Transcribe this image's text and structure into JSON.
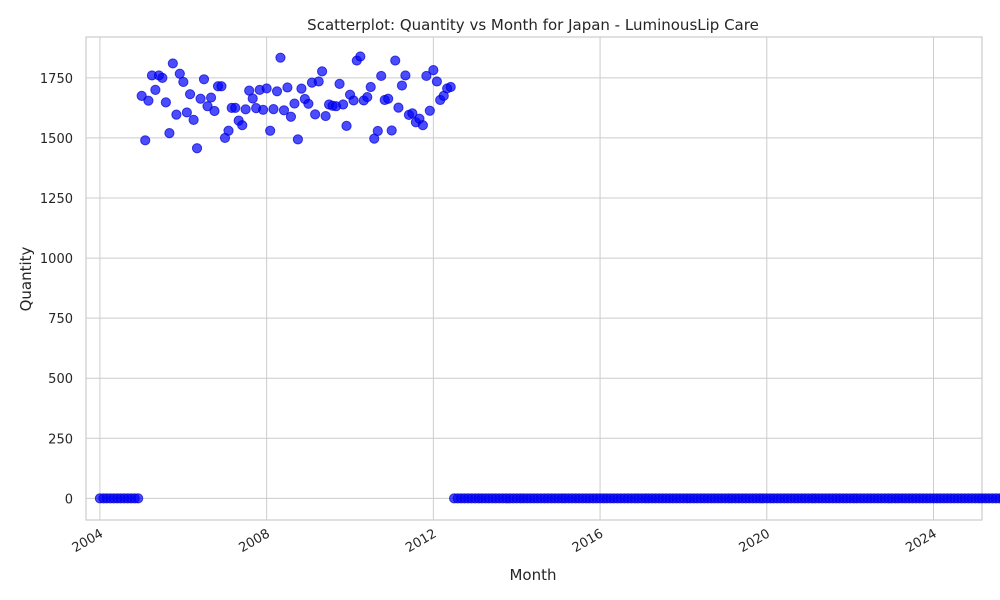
{
  "chart_data": {
    "type": "scatter",
    "title": "Scatterplot: Quantity vs Month for Japan - LuminousLip Care",
    "xlabel": "Month",
    "ylabel": "Quantity",
    "xlim": [
      "2003-09-01",
      "2025-03-01"
    ],
    "ylim": [
      -90,
      1920
    ],
    "x_ticks": [
      "2004",
      "2008",
      "2012",
      "2016",
      "2020",
      "2024"
    ],
    "y_ticks": [
      "0",
      "250",
      "500",
      "750",
      "1000",
      "1250",
      "1500",
      "1750"
    ],
    "grid": true,
    "point_color": "#0000ff",
    "point_opacity": 0.7,
    "series": [
      {
        "start_month": "2004-01",
        "values": [
          0,
          0,
          0,
          0,
          0,
          0,
          0,
          0,
          0,
          0,
          0,
          0,
          1675,
          1490,
          1655,
          1760,
          1700,
          1760,
          1750,
          1648,
          1520,
          1810,
          1597,
          1767,
          1733,
          1606,
          1682,
          1575,
          1457,
          1663,
          1744,
          1632,
          1668,
          1612,
          1715,
          1715,
          1500,
          1530,
          1625,
          1625,
          1572,
          1553,
          1619,
          1697,
          1664,
          1624,
          1700,
          1617,
          1706,
          1530,
          1620,
          1694,
          1834,
          1615,
          1710,
          1588,
          1643,
          1494,
          1705,
          1662,
          1642,
          1730,
          1598,
          1735,
          1777,
          1591,
          1639,
          1634,
          1632,
          1725,
          1639,
          1550,
          1680,
          1656,
          1822,
          1839,
          1656,
          1670,
          1712,
          1497,
          1529,
          1758,
          1658,
          1663,
          1531,
          1822,
          1626,
          1718,
          1760,
          1596,
          1602,
          1565,
          1580,
          1553,
          1758,
          1613,
          1782,
          1735,
          1658,
          1675,
          1706,
          1712,
          0,
          0,
          0,
          0,
          0,
          0,
          0,
          0,
          0,
          0,
          0,
          0,
          0,
          0,
          0,
          0,
          0,
          0,
          0,
          0,
          0,
          0,
          0,
          0,
          0,
          0,
          0,
          0,
          0,
          0,
          0,
          0,
          0,
          0,
          0,
          0,
          0,
          0,
          0,
          0,
          0,
          0,
          0,
          0,
          0,
          0,
          0,
          0,
          0,
          0,
          0,
          0,
          0,
          0,
          0,
          0,
          0,
          0,
          0,
          0,
          0,
          0,
          0,
          0,
          0,
          0,
          0,
          0,
          0,
          0,
          0,
          0,
          0,
          0,
          0,
          0,
          0,
          0,
          0,
          0,
          0,
          0,
          0,
          0,
          0,
          0,
          0,
          0,
          0,
          0,
          0,
          0,
          0,
          0,
          0,
          0,
          0,
          0,
          0,
          0,
          0,
          0,
          0,
          0,
          0,
          0,
          0,
          0,
          0,
          0,
          0,
          0,
          0,
          0,
          0,
          0,
          0,
          0,
          0,
          0,
          0,
          0,
          0,
          0,
          0,
          0,
          0,
          0,
          0,
          0,
          0,
          0,
          0,
          0,
          0,
          0,
          0,
          0,
          0,
          0,
          0,
          0,
          0,
          0,
          0,
          0,
          0,
          0,
          0,
          0,
          0,
          0,
          0,
          0,
          0,
          0,
          0,
          0,
          0,
          0,
          0,
          0,
          0,
          0,
          0,
          0,
          0,
          0,
          0,
          0,
          0,
          0,
          0,
          0,
          0,
          0,
          0,
          0,
          0,
          0,
          0,
          0,
          0,
          0,
          0,
          0,
          0,
          0,
          0,
          0,
          0,
          0
        ]
      }
    ]
  }
}
